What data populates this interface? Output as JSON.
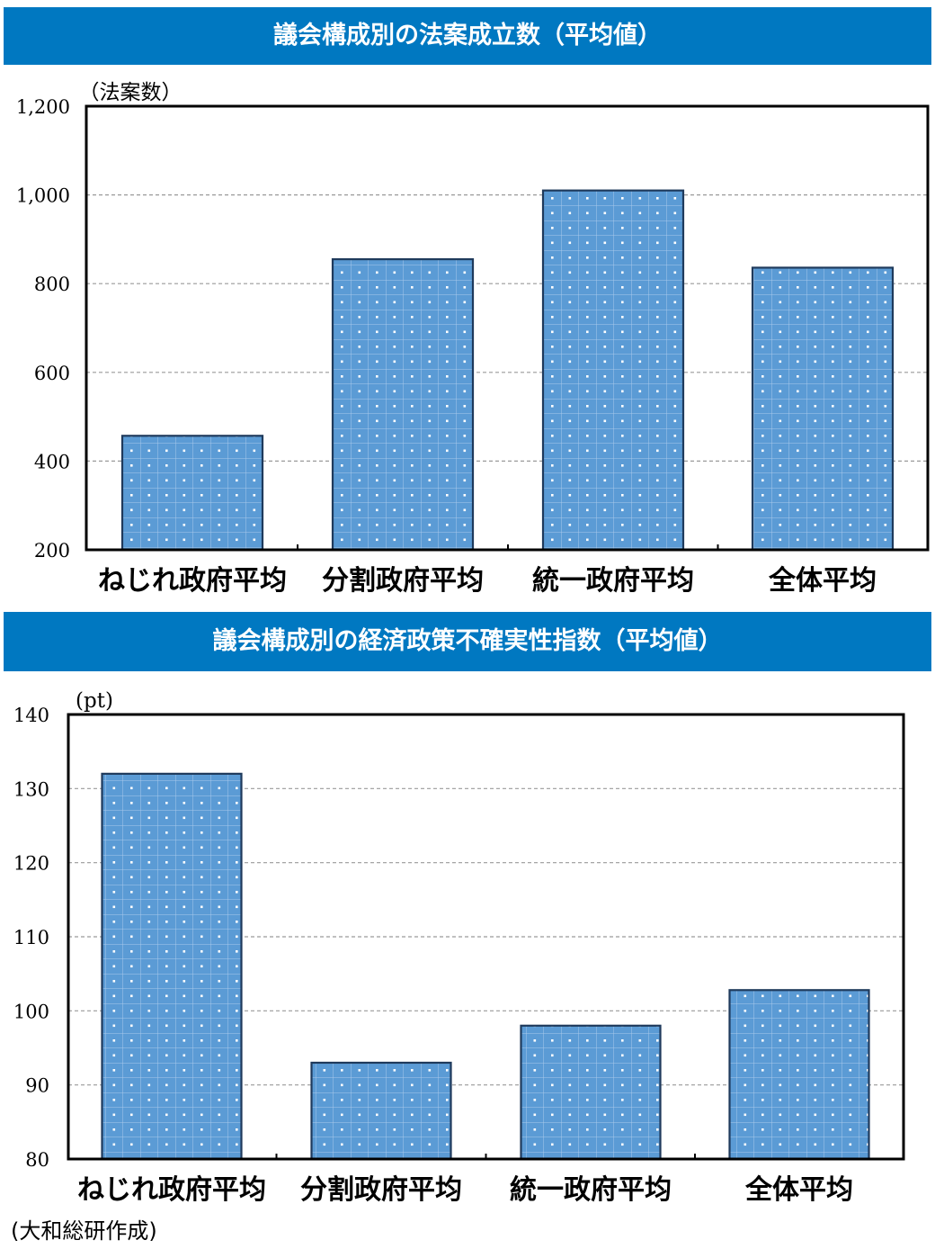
{
  "chart_data": [
    {
      "type": "bar",
      "title": "議会構成別の法案成立数（平均値）",
      "unit_label": "（法案数）",
      "categories": [
        "ねじれ政府平均",
        "分割政府平均",
        "統一政府平均",
        "全体平均"
      ],
      "values": [
        457,
        855,
        1010,
        836
      ],
      "ylim": [
        200,
        1200
      ],
      "yticks": [
        200,
        400,
        600,
        800,
        1000,
        1200
      ],
      "ytick_labels": [
        "200",
        "400",
        "600",
        "800",
        "1,000",
        "1,200"
      ],
      "grid": true,
      "bar_color": "#5b9bd5"
    },
    {
      "type": "bar",
      "title": "議会構成別の経済政策不確実性指数（平均値）",
      "unit_label": "(pt)",
      "categories": [
        "ねじれ政府平均",
        "分割政府平均",
        "統一政府平均",
        "全体平均"
      ],
      "values": [
        132,
        93,
        98,
        102.8
      ],
      "ylim": [
        80,
        140
      ],
      "yticks": [
        80,
        90,
        100,
        110,
        120,
        130,
        140
      ],
      "ytick_labels": [
        "80",
        "90",
        "100",
        "110",
        "120",
        "130",
        "140"
      ],
      "grid": true,
      "bar_color": "#5b9bd5"
    }
  ],
  "source_note": "(大和総研作成)",
  "colors": {
    "banner": "#0078c1",
    "bar": "#5b9bd5"
  }
}
